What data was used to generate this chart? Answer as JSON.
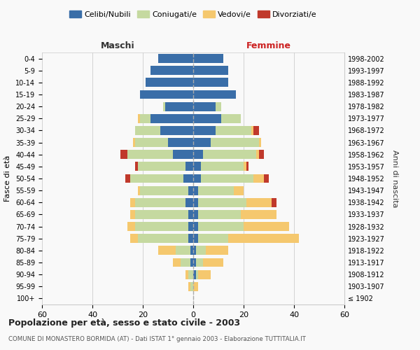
{
  "age_groups": [
    "100+",
    "95-99",
    "90-94",
    "85-89",
    "80-84",
    "75-79",
    "70-74",
    "65-69",
    "60-64",
    "55-59",
    "50-54",
    "45-49",
    "40-44",
    "35-39",
    "30-34",
    "25-29",
    "20-24",
    "15-19",
    "10-14",
    "5-9",
    "0-4"
  ],
  "birth_years": [
    "≤ 1902",
    "1903-1907",
    "1908-1912",
    "1913-1917",
    "1918-1922",
    "1923-1927",
    "1928-1932",
    "1933-1937",
    "1938-1942",
    "1943-1947",
    "1948-1952",
    "1953-1957",
    "1958-1962",
    "1963-1967",
    "1968-1972",
    "1973-1977",
    "1978-1982",
    "1983-1987",
    "1988-1992",
    "1993-1997",
    "1998-2002"
  ],
  "male": {
    "celibi": [
      0,
      0,
      0,
      1,
      1,
      2,
      2,
      2,
      3,
      2,
      4,
      3,
      8,
      10,
      13,
      17,
      11,
      21,
      19,
      17,
      14
    ],
    "coniugati": [
      0,
      1,
      2,
      4,
      6,
      20,
      21,
      21,
      20,
      19,
      21,
      19,
      18,
      13,
      10,
      4,
      1,
      0,
      0,
      0,
      0
    ],
    "vedovi": [
      0,
      1,
      1,
      3,
      7,
      3,
      3,
      2,
      2,
      1,
      0,
      0,
      0,
      1,
      0,
      1,
      0,
      0,
      0,
      0,
      0
    ],
    "divorziati": [
      0,
      0,
      0,
      0,
      0,
      0,
      0,
      0,
      0,
      0,
      2,
      1,
      3,
      0,
      0,
      0,
      0,
      0,
      0,
      0,
      0
    ]
  },
  "female": {
    "nubili": [
      0,
      0,
      1,
      1,
      1,
      2,
      2,
      2,
      2,
      2,
      3,
      3,
      4,
      7,
      9,
      11,
      9,
      17,
      14,
      14,
      12
    ],
    "coniugate": [
      0,
      0,
      1,
      3,
      4,
      12,
      18,
      17,
      19,
      14,
      21,
      17,
      21,
      19,
      14,
      8,
      2,
      0,
      0,
      0,
      0
    ],
    "vedove": [
      0,
      2,
      5,
      8,
      9,
      28,
      18,
      14,
      10,
      4,
      4,
      1,
      1,
      1,
      1,
      0,
      0,
      0,
      0,
      0,
      0
    ],
    "divorziate": [
      0,
      0,
      0,
      0,
      0,
      0,
      0,
      0,
      2,
      0,
      2,
      1,
      2,
      0,
      2,
      0,
      0,
      0,
      0,
      0,
      0
    ]
  },
  "colors": {
    "celibi": "#3a6ea8",
    "coniugati": "#c5d9a0",
    "vedovi": "#f5c86e",
    "divorziati": "#c0392b"
  },
  "title": "Popolazione per età, sesso e stato civile - 2003",
  "subtitle": "COMUNE DI MONASTERO BORMIDA (AT) - Dati ISTAT 1° gennaio 2003 - Elaborazione TUTTITALIA.IT",
  "ylabel_left": "Fasce di età",
  "ylabel_right": "Anni di nascita",
  "xlabel_left": "Maschi",
  "xlabel_right": "Femmine",
  "xlim": 60,
  "bg_color": "#f9f9f9",
  "grid_color": "#cccccc"
}
